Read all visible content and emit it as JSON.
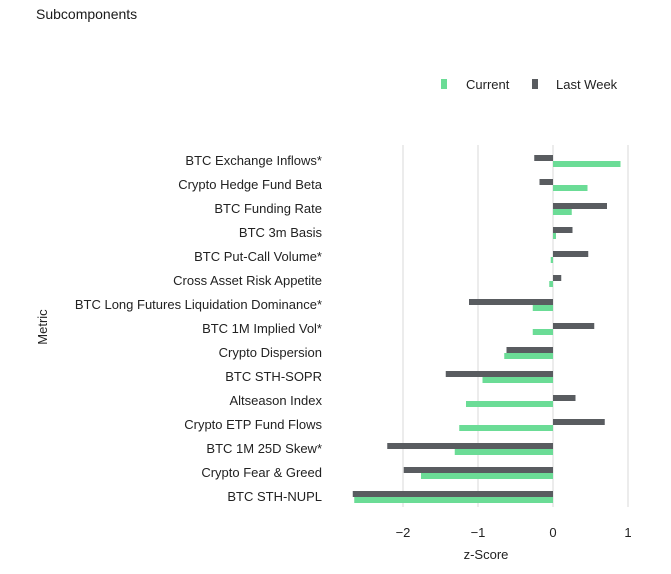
{
  "header": {
    "title": "Subcomponents"
  },
  "colors": {
    "current": "#6bdc96",
    "last_week": "#595c60",
    "grid": "#d9d9d9",
    "text": "#222222"
  },
  "chart_data": {
    "type": "bar",
    "orientation": "horizontal",
    "title": "",
    "xlabel": "z-Score",
    "ylabel": "Metric",
    "xlim": [
      -2.65,
      1.0
    ],
    "xticks": [
      -2,
      -1,
      0,
      1
    ],
    "grid": true,
    "legend_position": "top-right",
    "categories": [
      "BTC Exchange Inflows*",
      "Crypto Hedge Fund Beta",
      "BTC Funding Rate",
      "BTC 3m Basis",
      "BTC Put-Call Volume*",
      "Cross Asset Risk Appetite",
      "BTC Long Futures Liquidation Dominance*",
      "BTC 1M Implied Vol*",
      "Crypto Dispersion",
      "BTC STH-SOPR",
      "Altseason Index",
      "Crypto ETP Fund Flows",
      "BTC 1M 25D Skew*",
      "Crypto Fear & Greed",
      "BTC STH-NUPL"
    ],
    "series": [
      {
        "name": "Current",
        "values": [
          0.9,
          0.46,
          0.25,
          0.04,
          -0.03,
          -0.05,
          -0.27,
          -0.27,
          -0.65,
          -0.94,
          -1.16,
          -1.25,
          -1.31,
          -1.76,
          -2.65
        ]
      },
      {
        "name": "Last Week",
        "values": [
          -0.25,
          -0.18,
          0.72,
          0.26,
          0.47,
          0.11,
          -1.12,
          0.55,
          -0.62,
          -1.43,
          0.3,
          0.69,
          -2.21,
          -1.99,
          -2.67
        ]
      }
    ]
  }
}
